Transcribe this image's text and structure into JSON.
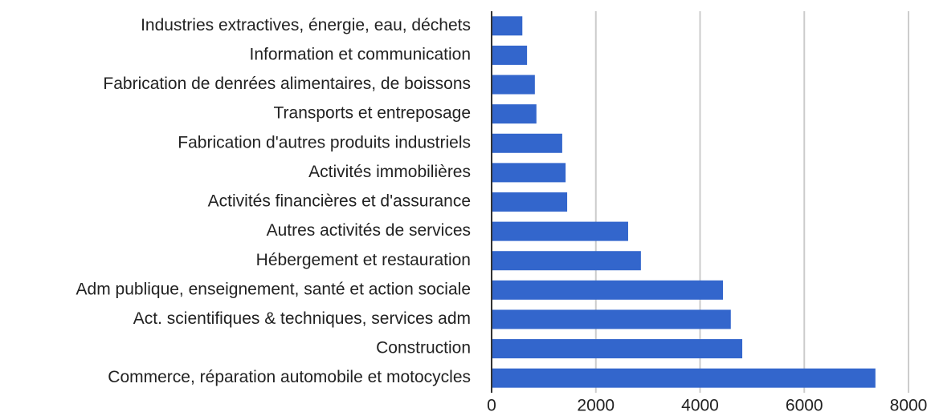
{
  "chart_data": {
    "type": "bar",
    "orientation": "horizontal",
    "categories": [
      "Industries extractives, énergie, eau, déchets",
      "Information et communication",
      "Fabrication de denrées alimentaires, de boissons",
      "Transports et entreposage",
      "Fabrication d'autres produits industriels",
      "Activités immobilières",
      "Activités financières et d'assurance",
      "Autres activités de services",
      "Hébergement et restauration",
      "Adm publique, enseignement, santé et action sociale",
      "Act. scientifiques & techniques, services adm",
      "Construction",
      "Commerce, réparation automobile et motocycles"
    ],
    "values": [
      590,
      680,
      830,
      860,
      1355,
      1420,
      1450,
      2620,
      2865,
      4440,
      4590,
      4810,
      7365
    ],
    "color": "#3366cc",
    "xlim": [
      0,
      8000
    ],
    "xticks": [
      0,
      2000,
      4000,
      6000,
      8000
    ],
    "grid": true
  }
}
